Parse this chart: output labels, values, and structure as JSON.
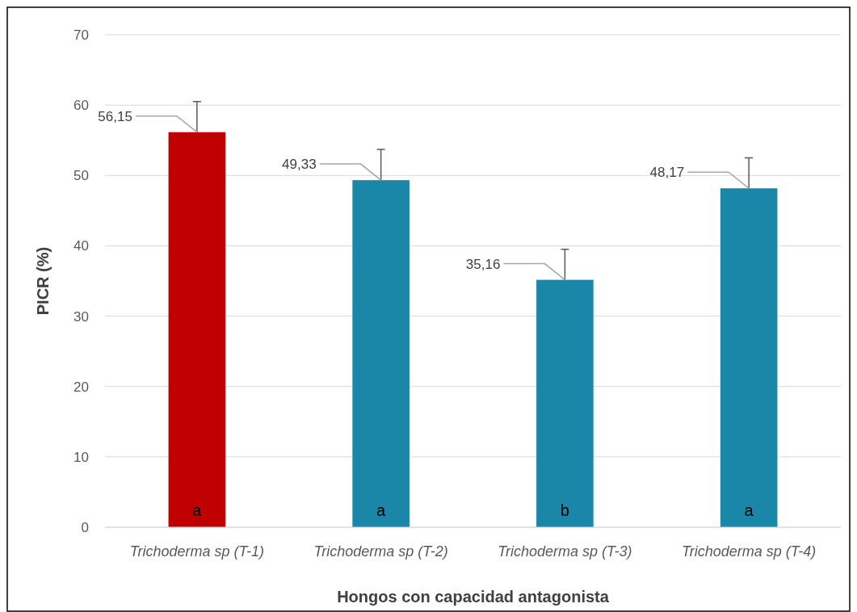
{
  "chart_data": {
    "type": "bar",
    "xlabel": "Hongos con capacidad antagonista",
    "ylabel": "PICR (%)",
    "categories": [
      "Trichoderma sp (T-1)",
      "Trichoderma sp (T-2)",
      "Trichoderma sp (T-3)",
      "Trichoderma sp (T-4)"
    ],
    "values": [
      56.15,
      49.33,
      35.16,
      48.17
    ],
    "colors": [
      "#c00000",
      "#1b87a8",
      "#1b87a8",
      "#1b87a8"
    ],
    "errors": [
      [
        56.15,
        60.5
      ],
      [
        49.33,
        53.7
      ],
      [
        35.16,
        39.5
      ],
      [
        48.17,
        52.5
      ]
    ],
    "value_labels": [
      "56,15",
      "49,33",
      "35,16",
      "48,17"
    ],
    "ylim": [
      0,
      70
    ],
    "yticks": [
      0,
      10,
      20,
      30,
      40,
      50,
      60,
      70
    ],
    "grid": "y",
    "annotations": [
      "a",
      "a",
      "b",
      "a"
    ]
  }
}
